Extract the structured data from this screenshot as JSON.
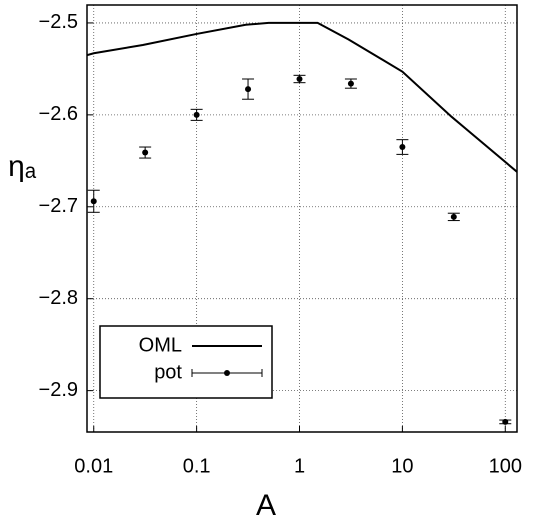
{
  "chart_data": {
    "type": "line",
    "x_label": "A",
    "y_label": "ηₐ",
    "log_x": true,
    "grid": true,
    "legend": "lower left",
    "xlim": [
      0.0086,
      130
    ],
    "ylim": [
      -2.945,
      -2.4805
    ],
    "xticks": [
      0.01,
      0.1,
      1,
      10,
      100
    ],
    "yticks": [
      {
        "value": -2.5,
        "label": "−2.5"
      },
      {
        "value": -2.6,
        "label": "−2.6"
      },
      {
        "value": -2.7,
        "label": "−2.7"
      },
      {
        "value": -2.8,
        "label": "−2.8"
      },
      {
        "value": -2.9,
        "label": "−2.9"
      }
    ],
    "series": [
      {
        "name": "OML",
        "color": "#000000",
        "style": "line",
        "x": [
          0.0086,
          0.01,
          0.03,
          0.1,
          0.3,
          0.5,
          1,
          1.5,
          3,
          10,
          30,
          130
        ],
        "values": [
          -2.535,
          -2.533,
          -2.524,
          -2.512,
          -2.502,
          -2.5,
          -2.5,
          -2.5,
          -2.518,
          -2.553,
          -2.602,
          -2.662
        ]
      },
      {
        "name": "pot",
        "color": "#000000",
        "style": "errorbar",
        "x": [
          0.01,
          0.0316,
          0.1,
          0.316,
          1,
          3.16,
          10,
          31.6,
          100
        ],
        "values": [
          -2.694,
          -2.641,
          -2.6,
          -2.572,
          -2.561,
          -2.566,
          -2.635,
          -2.711,
          -2.934
        ],
        "errors": [
          0.012,
          0.006,
          0.006,
          0.011,
          0.004,
          0.005,
          0.008,
          0.004,
          0.002
        ]
      }
    ]
  }
}
